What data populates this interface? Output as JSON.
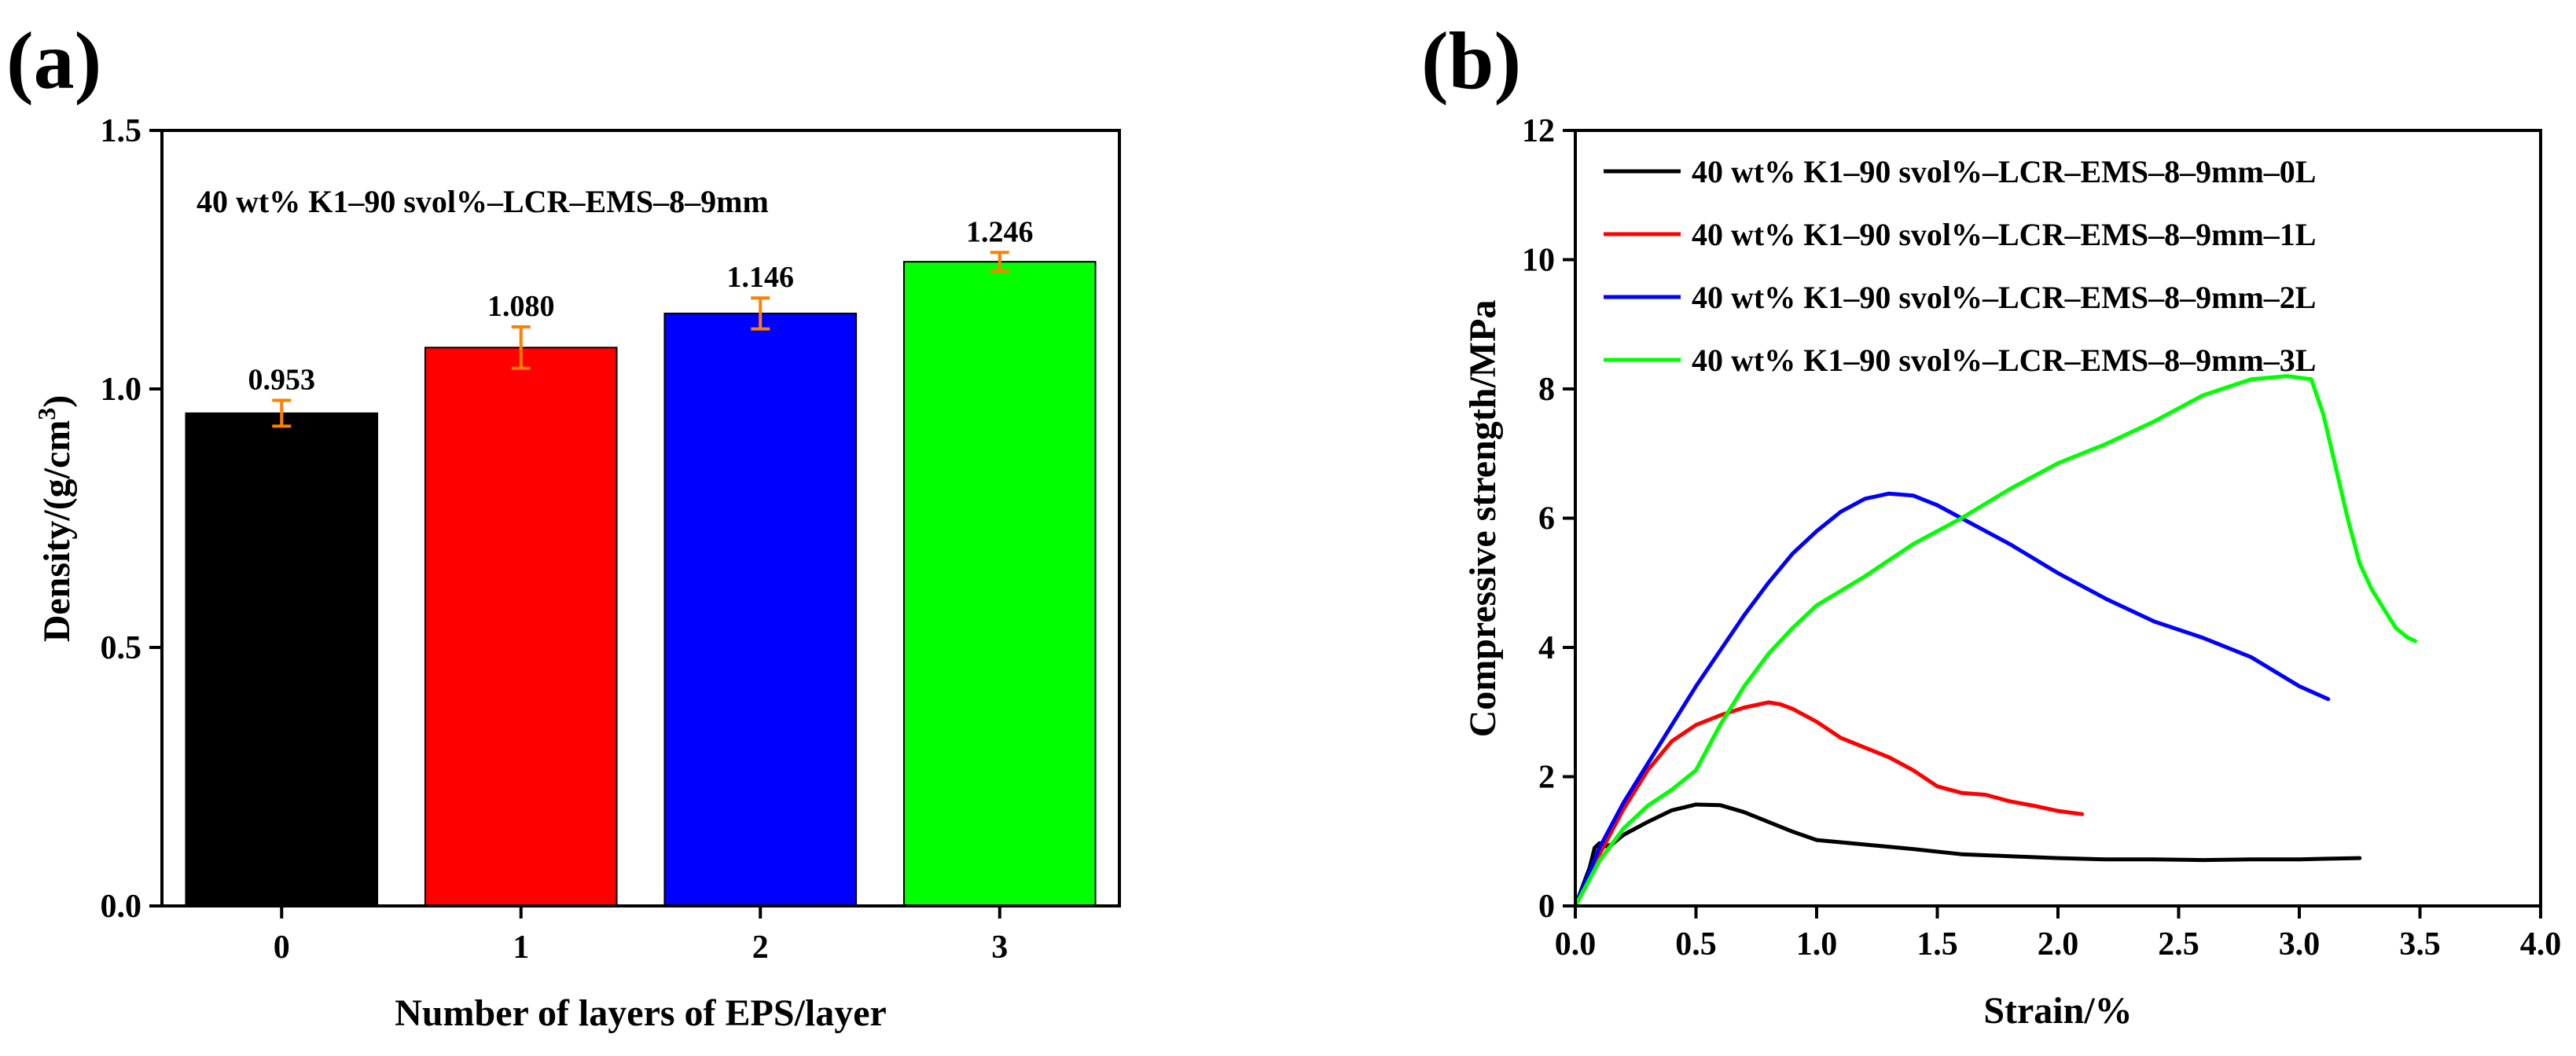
{
  "colors": {
    "black": "#000000",
    "red": "#ff0000",
    "blue": "#0000ff",
    "green": "#00ff00",
    "error_bar": "#ff7f00"
  },
  "chart_data": [
    {
      "panel_label": "(a)",
      "type": "bar",
      "annotation": "40 wt% K1–90 svol%–LCR–EMS–8–9mm",
      "xlabel": "Number of layers of EPS/layer",
      "ylabel_main": "Density/(g/cm",
      "ylabel_sup": "3",
      "ylabel_close": ")",
      "categories": [
        "0",
        "1",
        "2",
        "3"
      ],
      "values": [
        0.953,
        1.08,
        1.146,
        1.246
      ],
      "value_labels": [
        "0.953",
        "1.080",
        "1.146",
        "1.246"
      ],
      "errors": [
        0.025,
        0.04,
        0.03,
        0.018
      ],
      "bar_colors": [
        "#000000",
        "#ff0000",
        "#0000ff",
        "#00ff00"
      ],
      "ylim": [
        0,
        1.5
      ],
      "yticks": [
        0.0,
        0.5,
        1.0,
        1.5
      ],
      "ytick_labels": [
        "0.0",
        "0.5",
        "1.0",
        "1.5"
      ]
    },
    {
      "panel_label": "(b)",
      "type": "line",
      "xlabel": "Strain/%",
      "ylabel": "Compressive strength/MPa",
      "xlim": [
        0,
        4
      ],
      "ylim": [
        0,
        12
      ],
      "xticks": [
        0,
        0.5,
        1.0,
        1.5,
        2.0,
        2.5,
        3.0,
        3.5,
        4.0
      ],
      "xtick_labels": [
        "0.0",
        "0.5",
        "1.0",
        "1.5",
        "2.0",
        "2.5",
        "3.0",
        "3.5",
        "4.0"
      ],
      "yticks": [
        0,
        2,
        4,
        6,
        8,
        10,
        12
      ],
      "ytick_labels": [
        "0",
        "2",
        "4",
        "6",
        "8",
        "10",
        "12"
      ],
      "legend_position": "top-right",
      "series": [
        {
          "name": "40 wt% K1–90 svol%–LCR–EMS–8–9mm–0L",
          "color": "#000000",
          "x": [
            0,
            0.03,
            0.06,
            0.08,
            0.1,
            0.12,
            0.15,
            0.2,
            0.3,
            0.4,
            0.5,
            0.6,
            0.7,
            0.8,
            0.9,
            1.0,
            1.2,
            1.4,
            1.6,
            1.8,
            2.0,
            2.2,
            2.4,
            2.6,
            2.8,
            3.0,
            3.1,
            3.25
          ],
          "y": [
            0,
            0.3,
            0.6,
            0.9,
            0.97,
            0.92,
            0.95,
            1.1,
            1.3,
            1.48,
            1.57,
            1.56,
            1.45,
            1.3,
            1.15,
            1.02,
            0.95,
            0.88,
            0.8,
            0.77,
            0.74,
            0.72,
            0.72,
            0.71,
            0.72,
            0.72,
            0.73,
            0.74
          ]
        },
        {
          "name": "40 wt% K1–90 svol%–LCR–EMS–8–9mm–1L",
          "color": "#ff0000",
          "x": [
            0,
            0.1,
            0.2,
            0.3,
            0.4,
            0.5,
            0.6,
            0.7,
            0.8,
            0.85,
            0.9,
            1.0,
            1.1,
            1.2,
            1.3,
            1.4,
            1.5,
            1.6,
            1.7,
            1.8,
            1.9,
            2.0,
            2.1
          ],
          "y": [
            0,
            0.8,
            1.5,
            2.1,
            2.55,
            2.8,
            2.95,
            3.07,
            3.15,
            3.12,
            3.05,
            2.85,
            2.6,
            2.45,
            2.3,
            2.1,
            1.85,
            1.75,
            1.72,
            1.62,
            1.55,
            1.47,
            1.42
          ]
        },
        {
          "name": "40 wt% K1–90 svol%–LCR–EMS–8–9mm–2L",
          "color": "#0000ff",
          "x": [
            0,
            0.1,
            0.2,
            0.3,
            0.4,
            0.5,
            0.6,
            0.7,
            0.8,
            0.9,
            1.0,
            1.1,
            1.2,
            1.3,
            1.4,
            1.5,
            1.6,
            1.8,
            2.0,
            2.2,
            2.4,
            2.6,
            2.8,
            3.0,
            3.12
          ],
          "y": [
            0,
            0.9,
            1.6,
            2.2,
            2.8,
            3.4,
            3.95,
            4.5,
            5.0,
            5.45,
            5.8,
            6.1,
            6.3,
            6.38,
            6.35,
            6.2,
            6.0,
            5.6,
            5.15,
            4.75,
            4.4,
            4.15,
            3.85,
            3.4,
            3.2
          ]
        },
        {
          "name": "40 wt% K1–90 svol%–LCR–EMS–8–9mm–3L",
          "color": "#00ff00",
          "x": [
            0,
            0.1,
            0.2,
            0.3,
            0.4,
            0.5,
            0.6,
            0.7,
            0.8,
            0.9,
            1.0,
            1.2,
            1.4,
            1.6,
            1.8,
            2.0,
            2.2,
            2.4,
            2.6,
            2.8,
            2.95,
            3.05,
            3.1,
            3.15,
            3.2,
            3.25,
            3.3,
            3.35,
            3.4,
            3.45,
            3.48
          ],
          "y": [
            0,
            0.7,
            1.2,
            1.55,
            1.8,
            2.1,
            2.8,
            3.4,
            3.9,
            4.3,
            4.65,
            5.1,
            5.6,
            6.0,
            6.45,
            6.85,
            7.15,
            7.5,
            7.9,
            8.15,
            8.2,
            8.15,
            7.6,
            6.8,
            6.0,
            5.3,
            4.9,
            4.6,
            4.3,
            4.15,
            4.1
          ]
        }
      ]
    }
  ]
}
